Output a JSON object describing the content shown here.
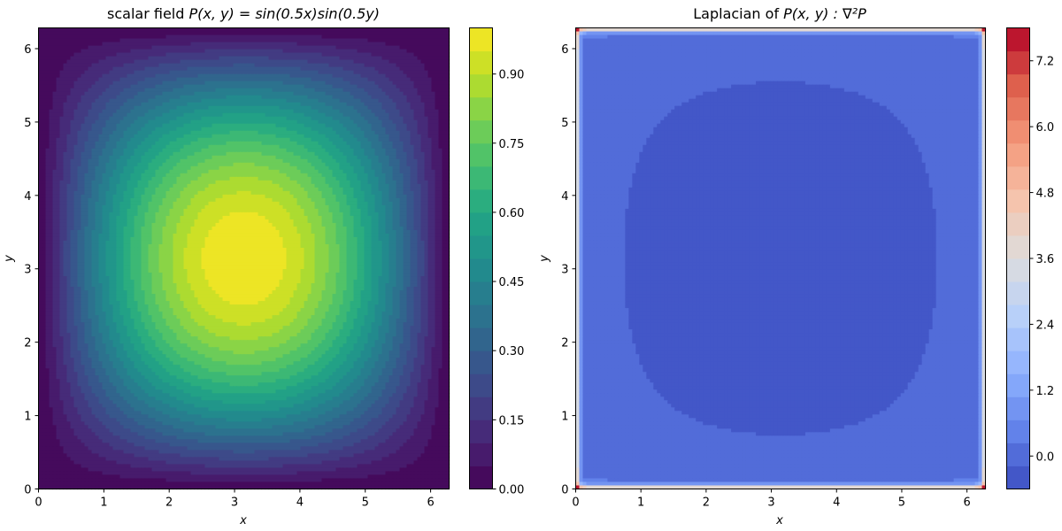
{
  "chart_data": [
    {
      "type": "heatmap",
      "title_prefix": "scalar field ",
      "title_math": "P(x, y) = sin(0.5x)sin(0.5y)",
      "xlabel": "x",
      "ylabel": "y",
      "xlim": [
        0,
        6.2832
      ],
      "ylim": [
        0,
        6.2832
      ],
      "xticks": [
        0,
        1,
        2,
        3,
        4,
        5,
        6
      ],
      "yticks": [
        0,
        1,
        2,
        3,
        4,
        5,
        6
      ],
      "colormap": "viridis",
      "levels": 20,
      "field": "sin(0.5*x)*sin(0.5*y)",
      "colorbar": {
        "min": 0.0,
        "max": 1.0,
        "ticks": [
          "0.00",
          "0.15",
          "0.30",
          "0.45",
          "0.60",
          "0.75",
          "0.90"
        ],
        "tick_values": [
          0.0,
          0.15,
          0.3,
          0.45,
          0.6,
          0.75,
          0.9
        ]
      }
    },
    {
      "type": "heatmap",
      "title_prefix": "Laplacian of ",
      "title_math": "P(x, y) : ∇²P",
      "xlabel": "x",
      "ylabel": "y",
      "xlim": [
        0,
        6.2832
      ],
      "ylim": [
        0,
        6.2832
      ],
      "xticks": [
        0,
        1,
        2,
        3,
        4,
        5,
        6
      ],
      "yticks": [
        0,
        1,
        2,
        3,
        4,
        5,
        6
      ],
      "colormap": "coolwarm",
      "levels": 20,
      "field": "-0.5*sin(0.5*x)*sin(0.5*y) with large positive values along the domain edges",
      "interior_min": -0.5,
      "edge_max": 7.8,
      "colorbar": {
        "min": -0.6,
        "max": 7.8,
        "ticks": [
          "0.0",
          "1.2",
          "2.4",
          "3.6",
          "4.8",
          "6.0",
          "7.2"
        ],
        "tick_values": [
          0.0,
          1.2,
          2.4,
          3.6,
          4.8,
          6.0,
          7.2
        ]
      }
    }
  ]
}
